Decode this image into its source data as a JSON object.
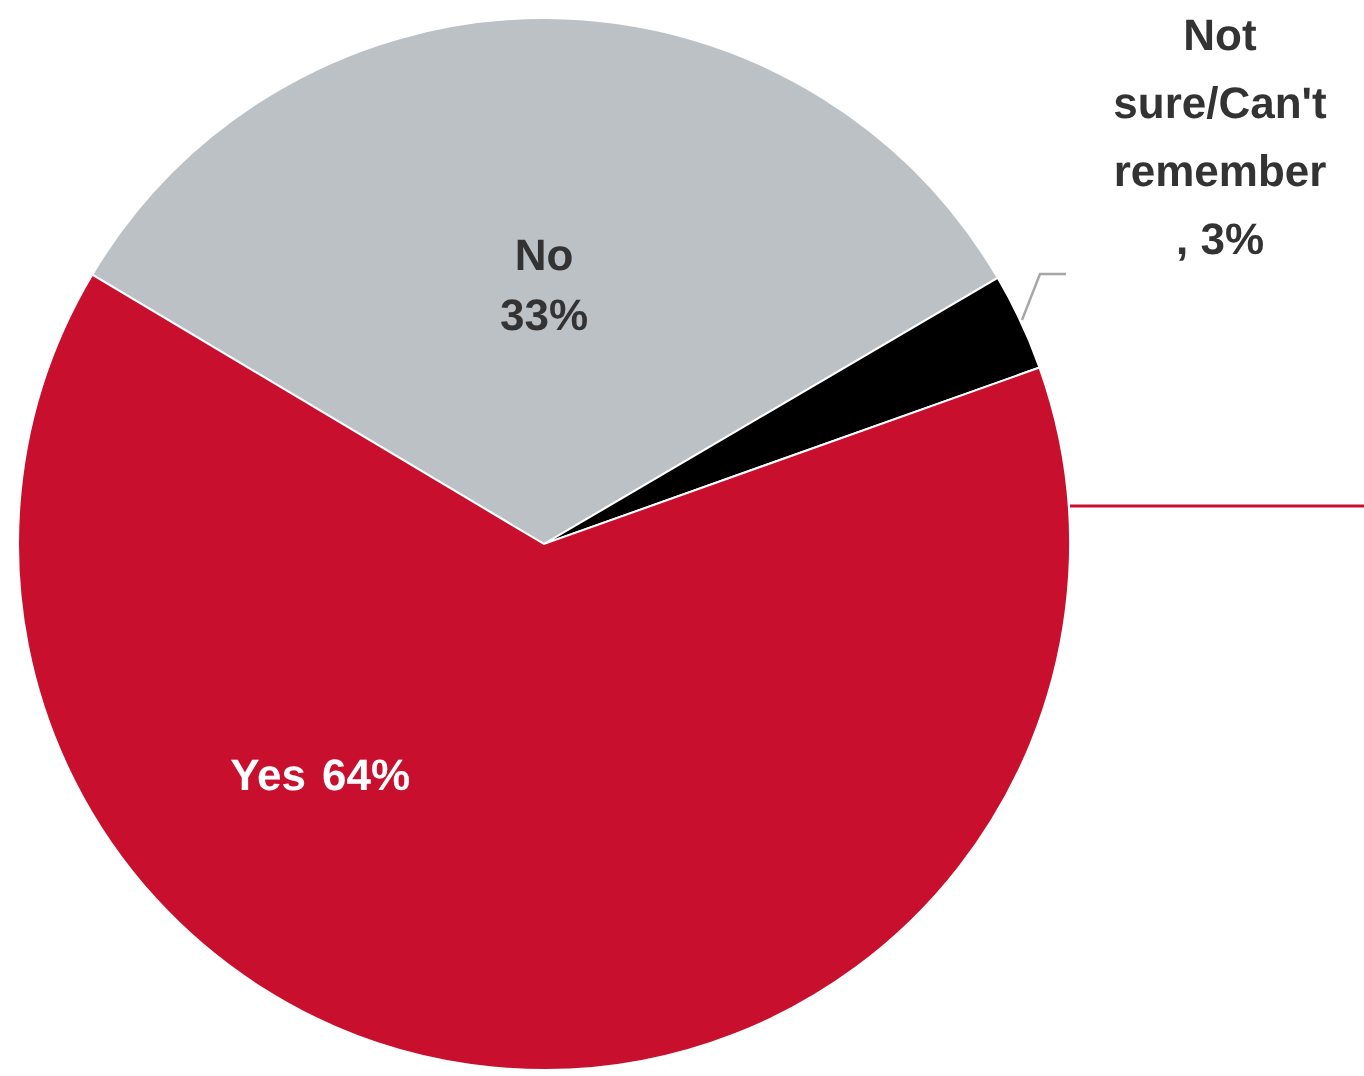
{
  "chart_data": {
    "type": "pie",
    "categories": [
      "No",
      "Not sure/Can't remember",
      "Yes"
    ],
    "values": [
      33,
      3,
      64
    ],
    "colors": [
      "#bcc1c6",
      "#000000",
      "#c8102e"
    ],
    "value_labels": [
      "33%",
      ", 3%",
      "64%"
    ]
  }
}
